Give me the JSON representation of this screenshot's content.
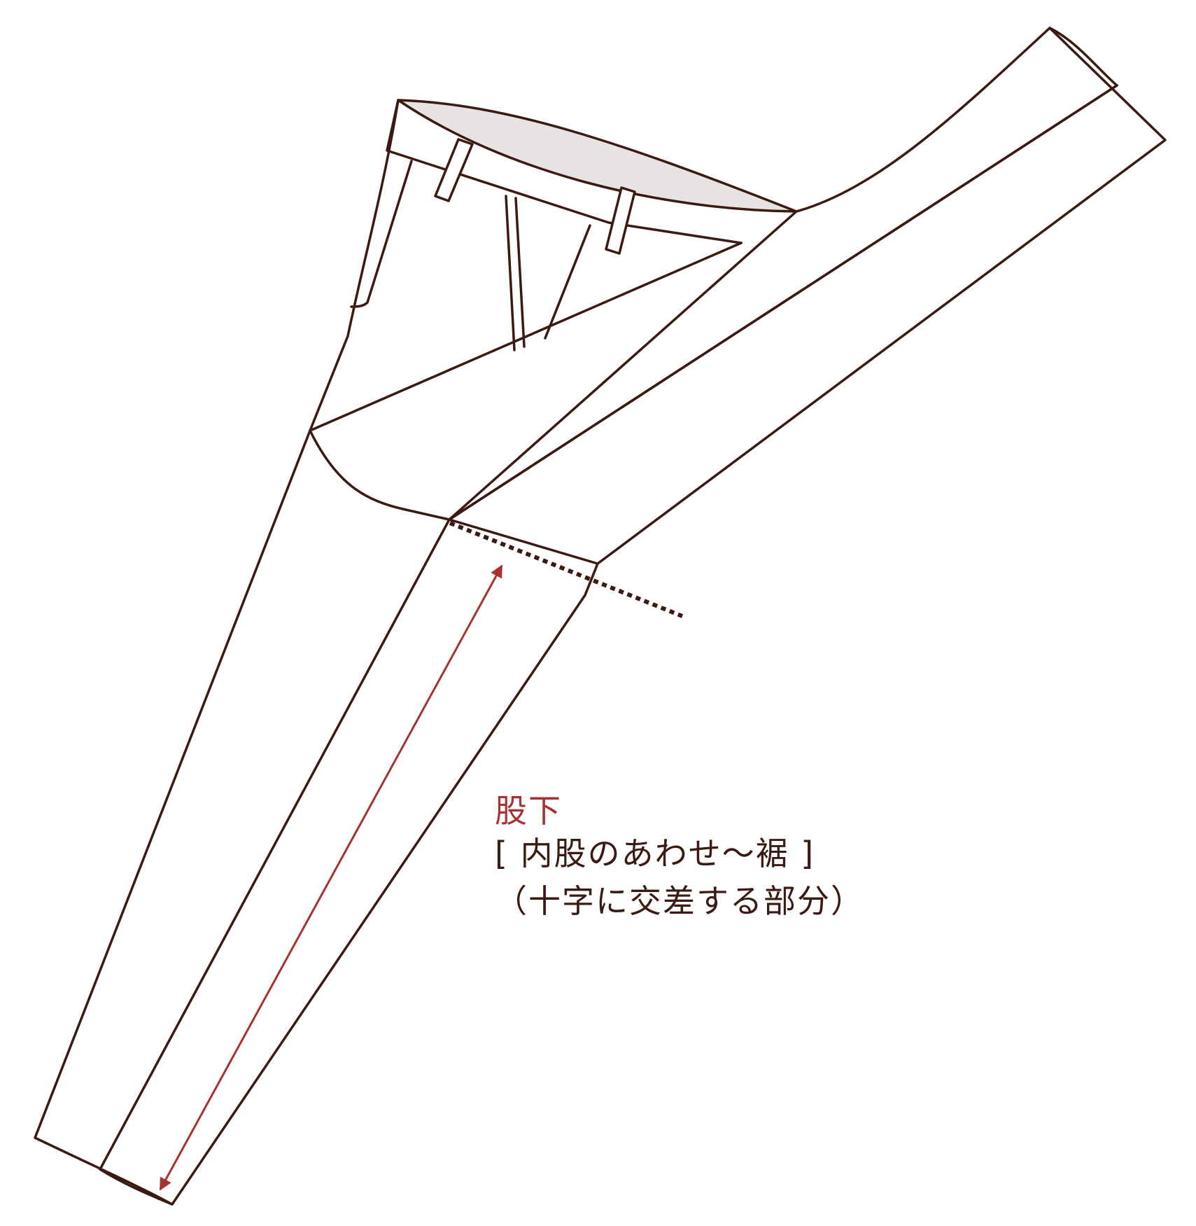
{
  "colors": {
    "outline": "#3a1a12",
    "accent": "#a83232",
    "waistband_inner": "#e7e3e2",
    "background": "#ffffff",
    "text": "#3a1a12"
  },
  "labels": {
    "title": "股下",
    "range": "[ 内股のあわせ～裾 ]",
    "note": "（十字に交差する部分）"
  },
  "icons": {
    "measure_arrow": "double-headed-arrow",
    "crotch_marker": "dotted-line"
  }
}
